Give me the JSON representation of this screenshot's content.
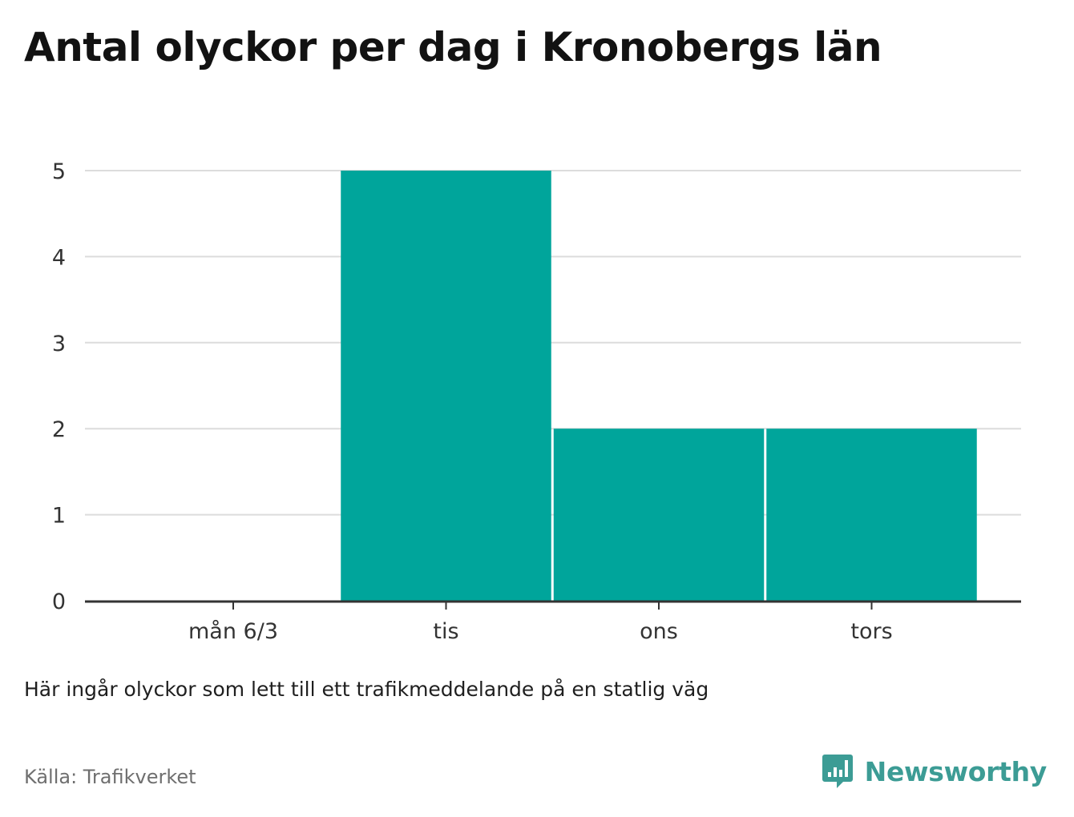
{
  "title": "Antal olyckor per dag i Kronobergs län",
  "note": "Här ingår olyckor som lett till ett trafikmeddelande på en statlig väg",
  "source": "Källa: Trafikverket",
  "brand": {
    "name": "Newsworthy",
    "icon": "newsworthy-logo-icon",
    "color": "#3c9c95"
  },
  "colors": {
    "bar": "#00a59b",
    "grid": "#dcdcdc",
    "axis": "#333333"
  },
  "chart_data": {
    "type": "bar",
    "categories": [
      "mån 6/3",
      "tis",
      "ons",
      "tors"
    ],
    "values": [
      0,
      5,
      2,
      2
    ],
    "ylim": [
      0,
      5
    ],
    "yticks": [
      0,
      1,
      2,
      3,
      4,
      5
    ],
    "xlabel": "",
    "ylabel": "",
    "grid": true,
    "legend": "none"
  }
}
